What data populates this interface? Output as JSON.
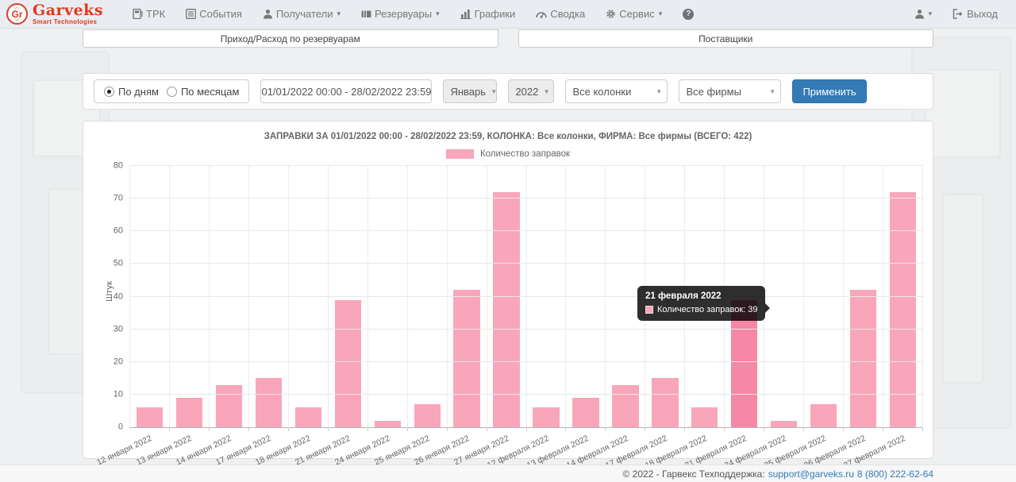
{
  "navbar": {
    "logo": {
      "initials": "Gr",
      "name": "Garveks",
      "tagline": "Smart Technologies"
    },
    "items": [
      {
        "label": "ТРК",
        "icon": "dispenser-icon"
      },
      {
        "label": "События",
        "icon": "list-icon"
      },
      {
        "label": "Получатели",
        "icon": "person-icon",
        "dropdown": true
      },
      {
        "label": "Резервуары",
        "icon": "tank-icon",
        "dropdown": true
      },
      {
        "label": "Графики",
        "icon": "bar-chart-icon"
      },
      {
        "label": "Сводка",
        "icon": "dashboard-icon"
      },
      {
        "label": "Сервис",
        "icon": "gear-icon",
        "dropdown": true
      }
    ],
    "help_glyph": "?",
    "logout_label": "Выход"
  },
  "tabs": [
    {
      "label": "Приход/Расход по резервуарам"
    },
    {
      "label": "Поставщики"
    }
  ],
  "filters": {
    "radio_by_days": "По дням",
    "radio_by_months": "По месяцам",
    "selected_mode": "По дням",
    "date_range": "01/01/2022 00:00 - 28/02/2022 23:59",
    "month": "Январь",
    "year": "2022",
    "columns": "Все колонки",
    "firms": "Все фирмы",
    "apply_label": "Применить"
  },
  "chart_data": {
    "type": "bar",
    "title": "ЗАПРАВКИ ЗА 01/01/2022 00:00 - 28/02/2022 23:59, КОЛОНКА: Все колонки, ФИРМА: Все фирмы (ВСЕГО: 422)",
    "ylabel": "Штук",
    "ylim": [
      0,
      80
    ],
    "ytick_step": 10,
    "grid": true,
    "legend_position": "top",
    "categories": [
      "12 января 2022",
      "13 января 2022",
      "14 января 2022",
      "17 января 2022",
      "18 января 2022",
      "21 января 2022",
      "24 января 2022",
      "25 января 2022",
      "26 января 2022",
      "27 января 2022",
      "12 февраля 2022",
      "13 февраля 2022",
      "14 февраля 2022",
      "17 февраля 2022",
      "18 февраля 2022",
      "21 февраля 2022",
      "24 февраля 2022",
      "25 февраля 2022",
      "26 февраля 2022",
      "27 февраля 2022"
    ],
    "series": [
      {
        "name": "Количество заправок",
        "values": [
          6,
          9,
          13,
          15,
          6,
          39,
          2,
          7,
          42,
          72,
          6,
          9,
          13,
          15,
          6,
          39,
          2,
          7,
          42,
          72
        ]
      }
    ],
    "total": 422,
    "highlighted_index": 15,
    "bar_color": "#f9a6ba",
    "bar_color_highlight": "#f687a6"
  },
  "tooltip": {
    "title": "21 февраля 2022",
    "text": "Количество заправок: 39"
  },
  "footer": {
    "copyright": "© 2022 - Гарвекс Техподдержка:",
    "email": "support@garveks.ru",
    "phone": "8 (800) 222-62-64"
  }
}
